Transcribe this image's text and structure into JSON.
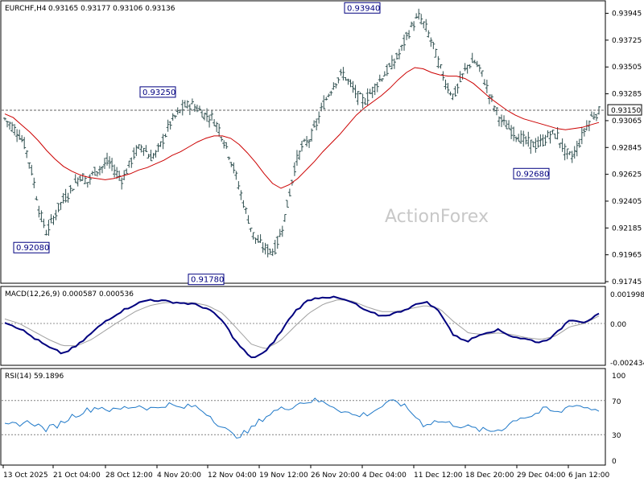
{
  "colors": {
    "background": "#ffffff",
    "candles": "#2f4f4f",
    "moving_average": "#cc0000",
    "macd_main": "#00007f",
    "macd_signal": "#a0a0a0",
    "rsi": "#1e78c8",
    "callout": "#000080",
    "levels": "#808080"
  },
  "header": {
    "symbol_tf": "EURCHF,H4",
    "ohlc": "0.93165 0.93177 0.93106 0.93136"
  },
  "watermark": "ActionForex",
  "current_price": "0.93150",
  "chart_data": [
    {
      "type": "candlestick",
      "symbol": "EURCHF",
      "timeframe": "H4",
      "open": 0.93165,
      "high": 0.93177,
      "low": 0.93106,
      "close": 0.93136,
      "ylim": [
        0.91745,
        0.93975
      ],
      "y_ticks": [
        "0.93945",
        "0.93725",
        "0.93505",
        "0.93285",
        "0.93065",
        "0.92845",
        "0.92625",
        "0.92405",
        "0.92185",
        "0.91965",
        "0.91745"
      ],
      "x_ticks": [
        "13 Oct 2025",
        "21 Oct 04:00",
        "28 Oct 12:00",
        "4 Nov 20:00",
        "12 Nov 04:00",
        "19 Nov 12:00",
        "26 Nov 20:00",
        "4 Dec 04:00",
        "11 Dec 12:00",
        "18 Dec 20:00",
        "29 Dec 04:00",
        "6 Jan 12:00"
      ],
      "annotations": [
        {
          "label": "0.92080",
          "x": "19 Oct",
          "y": 0.9208
        },
        {
          "label": "0.93250",
          "x": "4 Nov",
          "y": 0.9325
        },
        {
          "label": "0.91780",
          "x": "13 Nov",
          "y": 0.9178
        },
        {
          "label": "0.93940",
          "x": "5 Dec",
          "y": 0.9394
        },
        {
          "label": "0.92680",
          "x": "29 Dec",
          "y": 0.9268
        }
      ],
      "close_path": [
        0.9308,
        0.9302,
        0.9296,
        0.9285,
        0.9262,
        0.9232,
        0.9215,
        0.9226,
        0.9238,
        0.9245,
        0.9254,
        0.9262,
        0.9256,
        0.9265,
        0.9268,
        0.9273,
        0.9265,
        0.9258,
        0.927,
        0.9282,
        0.9286,
        0.9276,
        0.928,
        0.9292,
        0.9305,
        0.9312,
        0.9318,
        0.932,
        0.9316,
        0.9311,
        0.9309,
        0.93,
        0.9286,
        0.927,
        0.925,
        0.923,
        0.9212,
        0.9205,
        0.92,
        0.92,
        0.9215,
        0.924,
        0.927,
        0.9285,
        0.929,
        0.9302,
        0.9318,
        0.933,
        0.934,
        0.9345,
        0.9336,
        0.9327,
        0.9322,
        0.933,
        0.9338,
        0.9345,
        0.9352,
        0.936,
        0.9373,
        0.9385,
        0.9392,
        0.9382,
        0.9368,
        0.935,
        0.9335,
        0.9326,
        0.934,
        0.9352,
        0.9355,
        0.9346,
        0.933,
        0.9316,
        0.9305,
        0.93,
        0.9295,
        0.9291,
        0.9288,
        0.9286,
        0.929,
        0.9296,
        0.9294,
        0.9282,
        0.9276,
        0.9286,
        0.93,
        0.931,
        0.9314
      ],
      "series": [
        {
          "name": "",
          "role": "moving average",
          "values": [
            0.9312,
            0.9309,
            0.9303,
            0.9297,
            0.929,
            0.9282,
            0.9275,
            0.9269,
            0.9265,
            0.9262,
            0.926,
            0.9259,
            0.9258,
            0.9259,
            0.9261,
            0.9263,
            0.9266,
            0.9268,
            0.9271,
            0.9274,
            0.9278,
            0.9281,
            0.9285,
            0.9289,
            0.9292,
            0.9294,
            0.9294,
            0.9292,
            0.9287,
            0.928,
            0.9272,
            0.9263,
            0.9255,
            0.9251,
            0.9254,
            0.9259,
            0.9266,
            0.9273,
            0.9281,
            0.9288,
            0.9295,
            0.9303,
            0.9311,
            0.9317,
            0.9322,
            0.9327,
            0.9333,
            0.934,
            0.9346,
            0.935,
            0.9349,
            0.9346,
            0.9344,
            0.9343,
            0.9343,
            0.9341,
            0.9337,
            0.9331,
            0.9325,
            0.932,
            0.9315,
            0.9311,
            0.9308,
            0.9306,
            0.9304,
            0.9302,
            0.93,
            0.9299,
            0.93,
            0.9301,
            0.9303,
            0.9305
          ]
        }
      ]
    },
    {
      "type": "line",
      "title": "MACD(12,26,9) 0.000587 0.000536",
      "ylim": [
        -0.002434,
        0.001998
      ],
      "y_ticks": [
        "0.001998",
        "0.00",
        "-0.002434"
      ],
      "series": [
        {
          "name": "",
          "role": "main",
          "values": [
            0.0001,
            -0.0003,
            -0.0009,
            -0.0015,
            -0.0019,
            -0.0014,
            -0.0006,
            0.0002,
            0.0008,
            0.0013,
            0.0016,
            0.0015,
            0.0014,
            0.0013,
            0.001,
            0.0002,
            -0.0012,
            -0.0022,
            -0.0018,
            -0.0006,
            0.0008,
            0.0016,
            0.0018,
            0.0017,
            0.0014,
            0.0008,
            0.0005,
            0.0007,
            0.0011,
            0.0015,
            0.0008,
            -0.0008,
            -0.0011,
            -0.0006,
            -0.0004,
            -0.0008,
            -0.001,
            -0.0012,
            -0.0007,
            0.0003,
            0.0001,
            0.0006
          ]
        },
        {
          "name": "",
          "role": "signal",
          "values": [
            0.0003,
            0.0,
            -0.0005,
            -0.001,
            -0.0014,
            -0.0014,
            -0.001,
            -0.0004,
            0.0002,
            0.0008,
            0.0012,
            0.0014,
            0.0014,
            0.0014,
            0.0012,
            0.0007,
            -0.0003,
            -0.0013,
            -0.0016,
            -0.0011,
            -0.0002,
            0.0007,
            0.0013,
            0.0016,
            0.0015,
            0.0011,
            0.0008,
            0.0008,
            0.001,
            0.0012,
            0.001,
            0.0001,
            -0.0006,
            -0.0007,
            -0.0006,
            -0.0007,
            -0.0009,
            -0.001,
            -0.0008,
            -0.0002,
            0.0,
            0.0005
          ]
        }
      ]
    },
    {
      "type": "line",
      "title": "RSI(14) 59.1896",
      "ylim": [
        0,
        100
      ],
      "y_ticks": [
        "100",
        "70",
        "30",
        "0"
      ],
      "levels": [
        70,
        30
      ],
      "series": [
        {
          "name": "",
          "role": "rsi",
          "values": [
            40,
            43,
            45,
            36,
            42,
            52,
            58,
            63,
            58,
            62,
            64,
            60,
            66,
            61,
            64,
            55,
            40,
            28,
            33,
            48,
            58,
            62,
            68,
            70,
            66,
            58,
            52,
            55,
            64,
            70,
            58,
            42,
            46,
            43,
            40,
            36,
            34,
            38,
            50,
            52,
            60,
            55,
            66,
            62,
            59
          ]
        }
      ]
    }
  ]
}
